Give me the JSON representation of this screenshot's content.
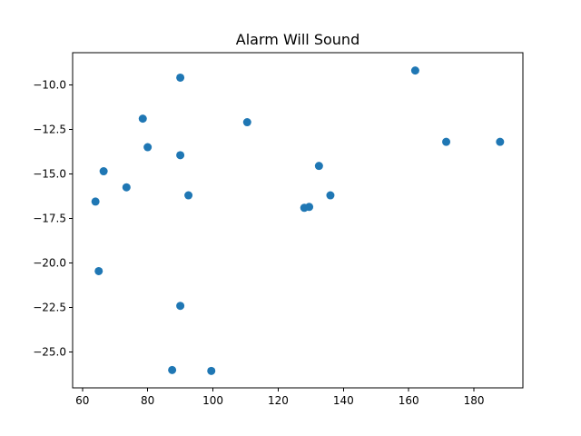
{
  "chart_data": {
    "type": "scatter",
    "title": "Alarm Will Sound",
    "xlabel": "",
    "ylabel": "",
    "xlim": [
      57,
      195
    ],
    "ylim": [
      -27,
      -8.2
    ],
    "xticks": [
      60,
      80,
      100,
      120,
      140,
      160,
      180
    ],
    "yticks": [
      -10.0,
      -12.5,
      -15.0,
      -17.5,
      -20.0,
      -22.5,
      -25.0
    ],
    "xtick_labels": [
      "60",
      "80",
      "100",
      "120",
      "140",
      "160",
      "180"
    ],
    "ytick_labels": [
      "−10.0",
      "−12.5",
      "−15.0",
      "−17.5",
      "−20.0",
      "−22.5",
      "−25.0"
    ],
    "grid": false,
    "marker_color": "#1f77b4",
    "series": [
      {
        "x": [
          162.0,
          90.0,
          110.5,
          78.5,
          171.5,
          188.0,
          80.0,
          90.0,
          132.5,
          66.5,
          73.5,
          92.5,
          136.0,
          64.0,
          128.0,
          129.5,
          65.0,
          90.0,
          87.5,
          99.5
        ],
        "y": [
          -9.2,
          -9.6,
          -12.1,
          -11.9,
          -13.2,
          -13.2,
          -13.5,
          -13.95,
          -14.55,
          -14.85,
          -15.75,
          -16.2,
          -16.2,
          -16.55,
          -16.9,
          -16.85,
          -20.45,
          -22.4,
          -26.0,
          -26.05
        ]
      }
    ]
  }
}
